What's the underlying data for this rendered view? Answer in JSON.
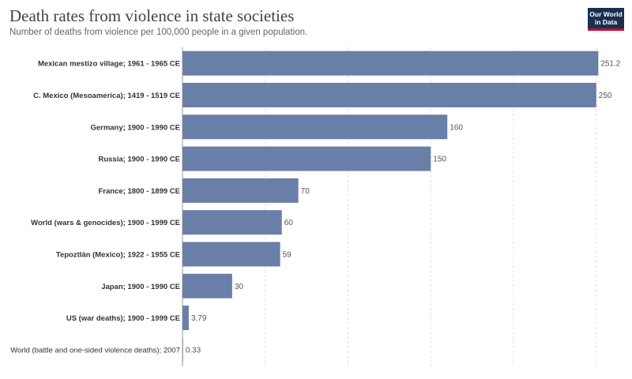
{
  "header": {
    "title": "Death rates from violence in state societies",
    "subtitle": "Number of deaths from violence per 100,000 people in a given population."
  },
  "logo": {
    "line1": "Our World",
    "line2": "in Data"
  },
  "colors": {
    "bar": "#6a7fa8",
    "grid": "#dddddd",
    "axis": "#999999"
  },
  "chart_data": {
    "type": "bar",
    "orientation": "horizontal",
    "title": "Death rates from violence in state societies",
    "subtitle": "Number of deaths from violence per 100,000 people in a given population.",
    "categories": [
      "Mexican mestizo village; 1961 - 1965 CE",
      "C. Mexico (Mesoamerica); 1419 - 1519 CE",
      "Germany; 1900 - 1990 CE",
      "Russia; 1900 - 1990 CE",
      "France; 1800 - 1899 CE",
      "World (wars & genocides); 1900 - 1999 CE",
      "Tepoztlán (Mexico); 1922 - 1955 CE",
      "Japan; 1900 - 1990 CE",
      "US (war deaths); 1900 - 1999 CE",
      "World (battle and one-sided violence deaths); 2007"
    ],
    "values": [
      251.2,
      250,
      160,
      150,
      70,
      60,
      59,
      30,
      3.79,
      0.33
    ],
    "value_labels": [
      "251.2",
      "250",
      "160",
      "150",
      "70",
      "60",
      "59",
      "30",
      "3.79",
      "0.33"
    ],
    "xlim": [
      0,
      252
    ],
    "gridlines": [
      0,
      50,
      100,
      150,
      200,
      250
    ],
    "grid": true,
    "xlabel": "",
    "ylabel": ""
  }
}
